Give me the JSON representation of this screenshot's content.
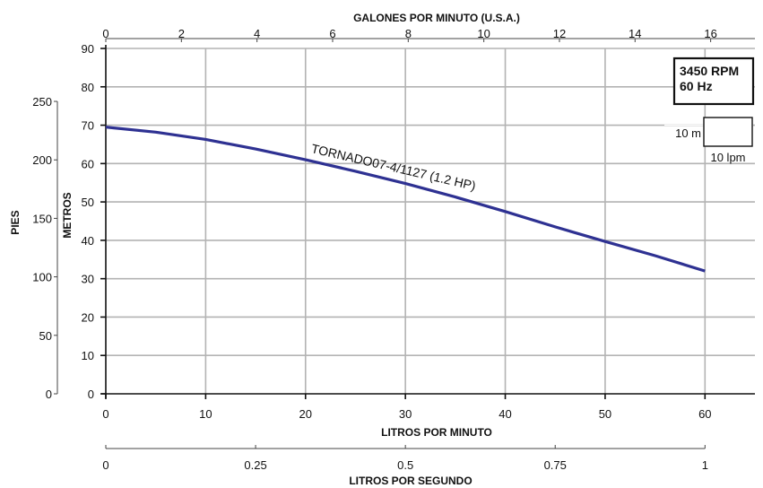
{
  "chart_data": {
    "type": "line",
    "x_primary": {
      "label": "LITROS POR MINUTO",
      "ticks": [
        0,
        10,
        20,
        30,
        40,
        50,
        60
      ],
      "range": [
        0,
        65
      ]
    },
    "x_top": {
      "label": "GALONES POR MINUTO (U.S.A.)",
      "ticks": [
        0,
        2,
        4,
        6,
        8,
        10,
        12,
        14,
        16
      ]
    },
    "x_bottom": {
      "label": "LITROS POR SEGUNDO",
      "ticks": [
        "0",
        "0.25",
        "0.5",
        "0.75",
        "1"
      ],
      "values": [
        0,
        0.25,
        0.5,
        0.75,
        1
      ]
    },
    "y_primary": {
      "label": "METROS",
      "ticks": [
        0,
        10,
        20,
        30,
        40,
        50,
        60,
        70,
        80,
        90
      ],
      "range": [
        0,
        90
      ]
    },
    "y_secondary": {
      "label": "PIES",
      "ticks": [
        0,
        50,
        100,
        150,
        200,
        250
      ]
    },
    "grid": true,
    "series": [
      {
        "name": "TORNADO07-4/1127 (1.2 HP)",
        "color": "#2e3192",
        "x": [
          0,
          5,
          10,
          15,
          20,
          25,
          30,
          35,
          40,
          45,
          50,
          55,
          60
        ],
        "y": [
          69.5,
          68.2,
          66.3,
          63.8,
          61,
          58,
          54.8,
          51.3,
          47.5,
          43.5,
          39.7,
          36,
          32
        ]
      }
    ],
    "annotations": {
      "rpm": "3450 RPM",
      "hz": "60 Hz",
      "scale_m": "10 m",
      "scale_lpm": "10 lpm"
    }
  }
}
